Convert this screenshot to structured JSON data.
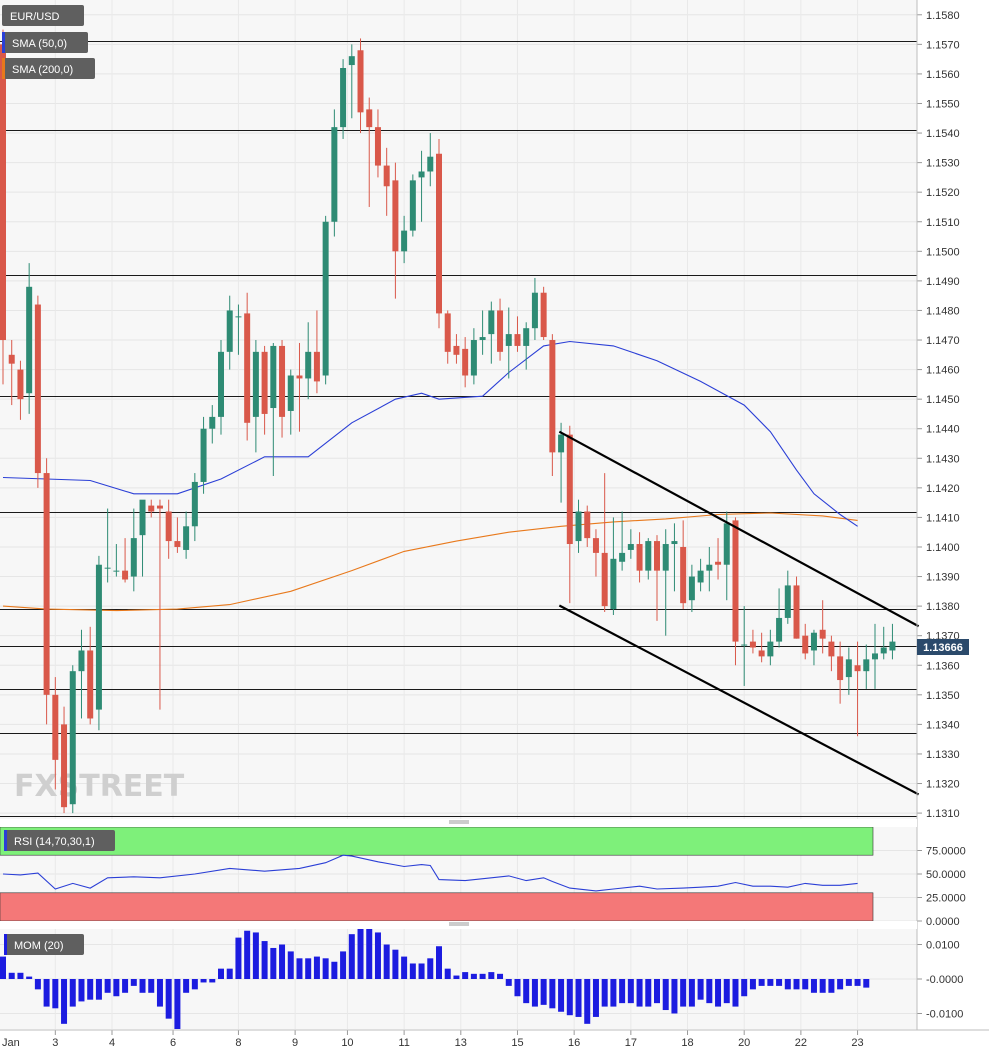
{
  "chart_data": [
    {
      "type": "candlestick",
      "symbol": "EUR/USD",
      "last_price": "1.13666",
      "ylim": [
        1.1308,
        1.1585
      ],
      "x_tick_labels": [
        {
          "label": "Jan",
          "i": -0.5
        },
        {
          "label": "3",
          "i": 6
        },
        {
          "label": "4",
          "i": 12.5
        },
        {
          "label": "6",
          "i": 19.5
        },
        {
          "label": "8",
          "i": 27
        },
        {
          "label": "9",
          "i": 33.5
        },
        {
          "label": "10",
          "i": 39.5
        },
        {
          "label": "11",
          "i": 46
        },
        {
          "label": "13",
          "i": 52.5
        },
        {
          "label": "15",
          "i": 59
        },
        {
          "label": "16",
          "i": 65.5
        },
        {
          "label": "17",
          "i": 72
        },
        {
          "label": "18",
          "i": 78.5
        },
        {
          "label": "20",
          "i": 85
        },
        {
          "label": "22",
          "i": 91.5
        },
        {
          "label": "23",
          "i": 98
        }
      ],
      "y_ticks": [
        "1.1580",
        "1.1570",
        "1.1560",
        "1.1550",
        "1.1540",
        "1.1530",
        "1.1520",
        "1.1510",
        "1.1500",
        "1.1490",
        "1.1480",
        "1.1470",
        "1.1460",
        "1.1450",
        "1.1440",
        "1.1430",
        "1.1420",
        "1.1410",
        "1.1400",
        "1.1390",
        "1.1380",
        "1.1370",
        "1.1360",
        "1.1350",
        "1.1340",
        "1.1330",
        "1.1320",
        "1.1310"
      ],
      "horizontal_levels": [
        1.1571,
        1.1541,
        1.1492,
        1.1451,
        1.1412,
        1.1379,
        1.13666,
        1.1352,
        1.1337,
        1.1309
      ],
      "ohlc": [
        [
          1.157,
          1.1575,
          1.1455,
          1.147
        ],
        [
          1.1465,
          1.147,
          1.1448,
          1.1462
        ],
        [
          1.146,
          1.1463,
          1.1443,
          1.145
        ],
        [
          1.1452,
          1.1496,
          1.1445,
          1.1488
        ],
        [
          1.1482,
          1.1485,
          1.142,
          1.1425
        ],
        [
          1.1425,
          1.143,
          1.134,
          1.135
        ],
        [
          1.135,
          1.1356,
          1.1318,
          1.1328
        ],
        [
          1.134,
          1.1346,
          1.131,
          1.1312
        ],
        [
          1.1313,
          1.136,
          1.131,
          1.1358
        ],
        [
          1.1358,
          1.1372,
          1.1342,
          1.1365
        ],
        [
          1.1365,
          1.1373,
          1.134,
          1.1342
        ],
        [
          1.1345,
          1.1397,
          1.1338,
          1.1394
        ],
        [
          1.1393,
          1.1413,
          1.1388,
          1.1393
        ],
        [
          1.1392,
          1.1401,
          1.139,
          1.1392
        ],
        [
          1.1392,
          1.1403,
          1.1388,
          1.1389
        ],
        [
          1.139,
          1.1413,
          1.1385,
          1.1403
        ],
        [
          1.1404,
          1.1415,
          1.139,
          1.1416
        ],
        [
          1.1414,
          1.1416,
          1.141,
          1.1412
        ],
        [
          1.1414,
          1.1416,
          1.1345,
          1.1413
        ],
        [
          1.1412,
          1.1416,
          1.1396,
          1.1402
        ],
        [
          1.1402,
          1.141,
          1.1398,
          1.14
        ],
        [
          1.1399,
          1.1412,
          1.1396,
          1.1407
        ],
        [
          1.1407,
          1.1425,
          1.1402,
          1.1422
        ],
        [
          1.1422,
          1.1444,
          1.1418,
          1.144
        ],
        [
          1.144,
          1.1448,
          1.1435,
          1.1444
        ],
        [
          1.1444,
          1.147,
          1.1438,
          1.1466
        ],
        [
          1.1466,
          1.1485,
          1.146,
          1.148
        ],
        [
          1.1478,
          1.1482,
          1.1465,
          1.1478
        ],
        [
          1.1479,
          1.1486,
          1.1436,
          1.1442
        ],
        [
          1.1444,
          1.147,
          1.1432,
          1.1466
        ],
        [
          1.1466,
          1.1468,
          1.1438,
          1.1445
        ],
        [
          1.1447,
          1.1469,
          1.1424,
          1.1468
        ],
        [
          1.1468,
          1.147,
          1.1437,
          1.1444
        ],
        [
          1.1446,
          1.146,
          1.1438,
          1.1458
        ],
        [
          1.1458,
          1.1469,
          1.1439,
          1.1457
        ],
        [
          1.1457,
          1.1476,
          1.145,
          1.1466
        ],
        [
          1.1466,
          1.148,
          1.1452,
          1.1456
        ],
        [
          1.1458,
          1.1512,
          1.1455,
          1.151
        ],
        [
          1.151,
          1.1548,
          1.1505,
          1.1542
        ],
        [
          1.1542,
          1.1565,
          1.1538,
          1.1562
        ],
        [
          1.1563,
          1.157,
          1.1545,
          1.1566
        ],
        [
          1.1568,
          1.1572,
          1.154,
          1.1547
        ],
        [
          1.1548,
          1.1552,
          1.1515,
          1.1542
        ],
        [
          1.1542,
          1.1548,
          1.1525,
          1.1529
        ],
        [
          1.1529,
          1.1535,
          1.1512,
          1.1522
        ],
        [
          1.1524,
          1.153,
          1.1484,
          1.15
        ],
        [
          1.15,
          1.1512,
          1.1496,
          1.1507
        ],
        [
          1.1507,
          1.1526,
          1.1505,
          1.1524
        ],
        [
          1.1525,
          1.1534,
          1.151,
          1.1527
        ],
        [
          1.1527,
          1.154,
          1.1522,
          1.1532
        ],
        [
          1.1533,
          1.1538,
          1.1474,
          1.1479
        ],
        [
          1.1479,
          1.148,
          1.1462,
          1.1466
        ],
        [
          1.1468,
          1.1472,
          1.1462,
          1.1465
        ],
        [
          1.1467,
          1.1471,
          1.1454,
          1.1458
        ],
        [
          1.1458,
          1.1474,
          1.1455,
          1.147
        ],
        [
          1.147,
          1.148,
          1.1465,
          1.1471
        ],
        [
          1.1472,
          1.1483,
          1.1462,
          1.148
        ],
        [
          1.148,
          1.1484,
          1.1463,
          1.1466
        ],
        [
          1.1468,
          1.1481,
          1.1457,
          1.1472
        ],
        [
          1.1472,
          1.1478,
          1.1466,
          1.1468
        ],
        [
          1.1468,
          1.1476,
          1.146,
          1.1474
        ],
        [
          1.1474,
          1.1491,
          1.147,
          1.1486
        ],
        [
          1.1486,
          1.1488,
          1.147,
          1.1471
        ],
        [
          1.147,
          1.1472,
          1.1424,
          1.1432
        ],
        [
          1.1432,
          1.1442,
          1.1415,
          1.1438
        ],
        [
          1.1438,
          1.1441,
          1.1381,
          1.1401
        ],
        [
          1.1402,
          1.1416,
          1.1398,
          1.1412
        ],
        [
          1.1412,
          1.1414,
          1.14,
          1.1403
        ],
        [
          1.1403,
          1.1406,
          1.139,
          1.1398
        ],
        [
          1.1398,
          1.1425,
          1.1378,
          1.138
        ],
        [
          1.1379,
          1.141,
          1.1377,
          1.1396
        ],
        [
          1.1395,
          1.1412,
          1.1392,
          1.1398
        ],
        [
          1.1399,
          1.1406,
          1.1396,
          1.1401
        ],
        [
          1.1401,
          1.1405,
          1.1388,
          1.1392
        ],
        [
          1.1392,
          1.1403,
          1.1389,
          1.1402
        ],
        [
          1.1402,
          1.1404,
          1.1375,
          1.1392
        ],
        [
          1.1392,
          1.1406,
          1.137,
          1.1401
        ],
        [
          1.1401,
          1.1408,
          1.1385,
          1.1402
        ],
        [
          1.14,
          1.1409,
          1.1379,
          1.1381
        ],
        [
          1.1382,
          1.1394,
          1.1378,
          1.139
        ],
        [
          1.1388,
          1.1396,
          1.1385,
          1.1392
        ],
        [
          1.1392,
          1.14,
          1.1385,
          1.1394
        ],
        [
          1.1395,
          1.1403,
          1.1389,
          1.1394
        ],
        [
          1.1394,
          1.1412,
          1.1382,
          1.1408
        ],
        [
          1.1409,
          1.141,
          1.136,
          1.1368
        ],
        [
          1.1367,
          1.138,
          1.1353,
          1.1367
        ],
        [
          1.1368,
          1.1372,
          1.1364,
          1.1366
        ],
        [
          1.1365,
          1.1371,
          1.1361,
          1.1363
        ],
        [
          1.1363,
          1.1372,
          1.136,
          1.1368
        ],
        [
          1.1368,
          1.1386,
          1.1366,
          1.1376
        ],
        [
          1.1376,
          1.1392,
          1.1374,
          1.1387
        ],
        [
          1.1387,
          1.139,
          1.1369,
          1.1369
        ],
        [
          1.137,
          1.1374,
          1.1362,
          1.1364
        ],
        [
          1.1365,
          1.1372,
          1.136,
          1.1371
        ],
        [
          1.1372,
          1.1382,
          1.1364,
          1.1369
        ],
        [
          1.1368,
          1.137,
          1.1358,
          1.1363
        ],
        [
          1.1363,
          1.1368,
          1.1347,
          1.1355
        ],
        [
          1.1356,
          1.1366,
          1.135,
          1.1362
        ],
        [
          1.136,
          1.1368,
          1.1336,
          1.1358
        ],
        [
          1.1358,
          1.1367,
          1.1352,
          1.1362
        ],
        [
          1.1362,
          1.1374,
          1.1352,
          1.1364
        ],
        [
          1.1364,
          1.1373,
          1.1362,
          1.1366
        ],
        [
          1.1365,
          1.1374,
          1.1362,
          1.1368
        ]
      ],
      "sma50": [
        {
          "i": 0,
          "v": 1.14235
        },
        {
          "i": 10,
          "v": 1.14225
        },
        {
          "i": 15,
          "v": 1.1418
        },
        {
          "i": 20,
          "v": 1.1418
        },
        {
          "i": 25,
          "v": 1.1423
        },
        {
          "i": 30,
          "v": 1.14305
        },
        {
          "i": 35,
          "v": 1.14305
        },
        {
          "i": 40,
          "v": 1.1442
        },
        {
          "i": 45,
          "v": 1.145
        },
        {
          "i": 48,
          "v": 1.1452
        },
        {
          "i": 50,
          "v": 1.145
        },
        {
          "i": 55,
          "v": 1.1451
        },
        {
          "i": 58,
          "v": 1.1459
        },
        {
          "i": 62,
          "v": 1.1468
        },
        {
          "i": 65,
          "v": 1.14695
        },
        {
          "i": 70,
          "v": 1.1468
        },
        {
          "i": 75,
          "v": 1.1463
        },
        {
          "i": 80,
          "v": 1.1456
        },
        {
          "i": 85,
          "v": 1.1448
        },
        {
          "i": 88,
          "v": 1.1439
        },
        {
          "i": 91,
          "v": 1.1426
        },
        {
          "i": 93,
          "v": 1.1418
        },
        {
          "i": 96,
          "v": 1.1411
        },
        {
          "i": 98,
          "v": 1.1407
        }
      ],
      "sma200": [
        {
          "i": 0,
          "v": 1.138
        },
        {
          "i": 5,
          "v": 1.1379
        },
        {
          "i": 13,
          "v": 1.13785
        },
        {
          "i": 20,
          "v": 1.1379
        },
        {
          "i": 26,
          "v": 1.13805
        },
        {
          "i": 33,
          "v": 1.1385
        },
        {
          "i": 40,
          "v": 1.1392
        },
        {
          "i": 46,
          "v": 1.13985
        },
        {
          "i": 52,
          "v": 1.1402
        },
        {
          "i": 58,
          "v": 1.1405
        },
        {
          "i": 64,
          "v": 1.1407
        },
        {
          "i": 70,
          "v": 1.14085
        },
        {
          "i": 76,
          "v": 1.14095
        },
        {
          "i": 82,
          "v": 1.1411
        },
        {
          "i": 88,
          "v": 1.14115
        },
        {
          "i": 94,
          "v": 1.14105
        },
        {
          "i": 98,
          "v": 1.1409
        }
      ],
      "trend_lines": [
        {
          "i1": 63.8,
          "v1": 1.1439,
          "i2": 105,
          "v2": 1.13732
        },
        {
          "i1": 63.8,
          "v1": 1.13802,
          "i2": 105,
          "v2": 1.13163
        }
      ]
    },
    {
      "type": "line",
      "indicator": "RSI",
      "ylim": [
        0,
        100
      ],
      "y_ticks": [
        "75.0000",
        "50.0000",
        "25.0000",
        "0.0000"
      ],
      "overbought": 70,
      "oversold": 30,
      "points": [
        {
          "i": 0,
          "v": 50
        },
        {
          "i": 2,
          "v": 49
        },
        {
          "i": 4,
          "v": 51
        },
        {
          "i": 6,
          "v": 34
        },
        {
          "i": 8,
          "v": 40
        },
        {
          "i": 10,
          "v": 35
        },
        {
          "i": 12,
          "v": 46
        },
        {
          "i": 15,
          "v": 47
        },
        {
          "i": 18,
          "v": 46
        },
        {
          "i": 22,
          "v": 50
        },
        {
          "i": 26,
          "v": 56
        },
        {
          "i": 30,
          "v": 53
        },
        {
          "i": 34,
          "v": 56
        },
        {
          "i": 37,
          "v": 62
        },
        {
          "i": 39,
          "v": 70
        },
        {
          "i": 40,
          "v": 69
        },
        {
          "i": 43,
          "v": 63
        },
        {
          "i": 46,
          "v": 58
        },
        {
          "i": 48,
          "v": 60
        },
        {
          "i": 49,
          "v": 59
        },
        {
          "i": 50,
          "v": 44
        },
        {
          "i": 53,
          "v": 43
        },
        {
          "i": 56,
          "v": 46
        },
        {
          "i": 58,
          "v": 48
        },
        {
          "i": 60,
          "v": 43
        },
        {
          "i": 62,
          "v": 46
        },
        {
          "i": 63,
          "v": 42
        },
        {
          "i": 65,
          "v": 35
        },
        {
          "i": 68,
          "v": 32
        },
        {
          "i": 70,
          "v": 34
        },
        {
          "i": 73,
          "v": 37
        },
        {
          "i": 75,
          "v": 34
        },
        {
          "i": 78,
          "v": 35
        },
        {
          "i": 80,
          "v": 36
        },
        {
          "i": 82,
          "v": 37
        },
        {
          "i": 84,
          "v": 41
        },
        {
          "i": 86,
          "v": 37
        },
        {
          "i": 88,
          "v": 37
        },
        {
          "i": 90,
          "v": 36
        },
        {
          "i": 92,
          "v": 40
        },
        {
          "i": 94,
          "v": 38
        },
        {
          "i": 96,
          "v": 38
        },
        {
          "i": 98,
          "v": 40
        }
      ]
    },
    {
      "type": "bar",
      "indicator": "MOM",
      "ylim": [
        -0.0145,
        0.0145
      ],
      "y_ticks": [
        {
          "label": "0.0100",
          "v": 0.01
        },
        {
          "label": "-0.0000",
          "v": 0
        },
        {
          "label": "-0.0100",
          "v": -0.01
        }
      ],
      "values": [
        0.0065,
        0.0018,
        0.0018,
        0.0007,
        -0.003,
        -0.008,
        -0.0085,
        -0.013,
        -0.008,
        -0.0065,
        -0.006,
        -0.006,
        -0.004,
        -0.005,
        -0.004,
        -0.002,
        -0.004,
        -0.004,
        -0.008,
        -0.0115,
        -0.0145,
        -0.004,
        -0.003,
        -0.001,
        -0.001,
        0.003,
        0.003,
        0.012,
        0.014,
        0.0135,
        0.011,
        0.009,
        0.01,
        0.008,
        0.006,
        0.006,
        0.0065,
        0.006,
        0.005,
        0.008,
        0.013,
        0.015,
        0.0165,
        0.0135,
        0.01,
        0.0085,
        0.0065,
        0.0045,
        0.0045,
        0.006,
        0.0095,
        0.003,
        0.001,
        0.002,
        0.0015,
        0.0015,
        0.002,
        0.0015,
        -0.002,
        -0.005,
        -0.007,
        -0.008,
        -0.0075,
        -0.0085,
        -0.0095,
        -0.0105,
        -0.011,
        -0.013,
        -0.011,
        -0.008,
        -0.008,
        -0.007,
        -0.007,
        -0.008,
        -0.008,
        -0.007,
        -0.009,
        -0.01,
        -0.008,
        -0.008,
        -0.006,
        -0.007,
        -0.008,
        -0.007,
        -0.008,
        -0.005,
        -0.003,
        -0.002,
        -0.002,
        -0.002,
        -0.003,
        -0.003,
        -0.003,
        -0.004,
        -0.004,
        -0.004,
        -0.003,
        -0.002,
        -0.002,
        -0.0025
      ]
    }
  ],
  "legend": {
    "symbol": "EUR/USD",
    "sma50": "SMA (50,0)",
    "sma200": "SMA (200,0)",
    "rsi": "RSI (14,70,30,1)",
    "mom": "MOM (20)"
  },
  "watermark": "FXSTREET",
  "colors": {
    "up": "#2e8b74",
    "down": "#d9584a",
    "sma50": "#2b3fd6",
    "sma200": "#e8791c",
    "rsi_line": "#2b3fd6",
    "overbought_zone": "#7ef07a",
    "oversold_zone": "#f47878",
    "mom_bar": "#1c1ce0",
    "badge": "#5f5f5f",
    "last_price_badge": "#2b4a6b"
  }
}
